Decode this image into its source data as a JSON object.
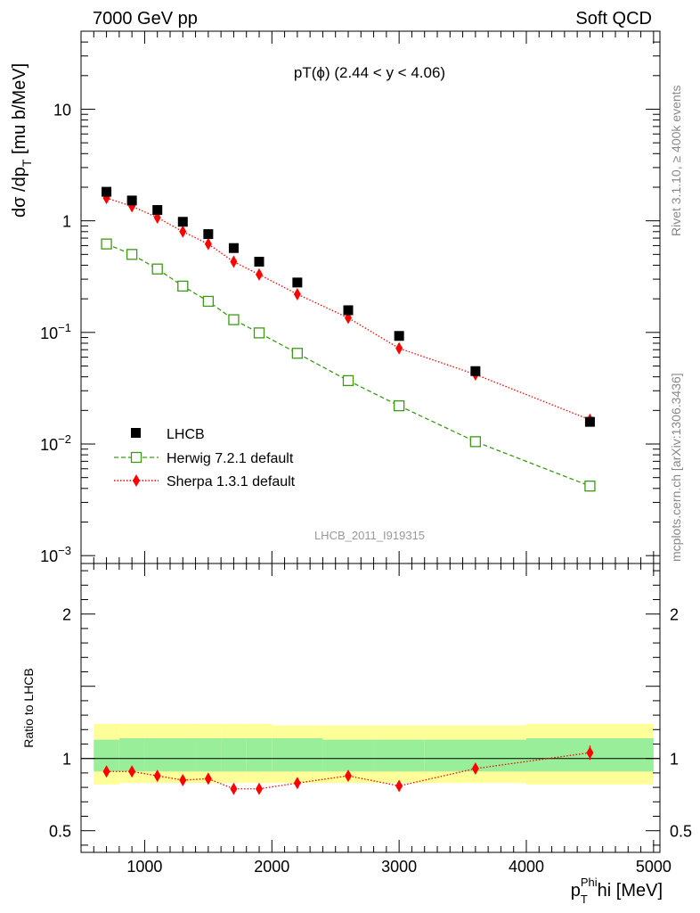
{
  "header": {
    "left": "7000 GeV pp",
    "right": "Soft QCD"
  },
  "side_text": {
    "rivet": "Rivet 3.1.10, ≥ 400k events",
    "mcplots": "mcplots.cern.ch [arXiv:1306.3436]"
  },
  "colors": {
    "data": "#000000",
    "herwig": "#3c9a14",
    "sherpa": "#ff0000",
    "band_inner": "#99ee99",
    "band_outer": "#ffff99"
  },
  "chart_data": [
    {
      "type": "scatter",
      "title": "pT(ϕ) (2.44 < y < 4.06)",
      "ylabel": "dσ /dp_T [mu b/MeV]",
      "ylabel_parts": {
        "main": "dσ /dp",
        "sub": "T",
        "tail": " [mu b/MeV]"
      },
      "yscale": "log",
      "ylim": [
        0.00085,
        50
      ],
      "xlim": [
        500,
        5050
      ],
      "ytick_labels": [
        {
          "value": 0.001,
          "base": "10",
          "exp": "−3"
        },
        {
          "value": 0.01,
          "base": "10",
          "exp": "−2"
        },
        {
          "value": 0.1,
          "base": "10",
          "exp": "−1"
        },
        {
          "value": 1,
          "label": "1"
        },
        {
          "value": 10,
          "label": "10"
        }
      ],
      "legend_position": "lower-left",
      "watermark": "LHCB_2011_I919315",
      "series": [
        {
          "name": "LHCB",
          "style": "data-squares",
          "x": [
            700,
            900,
            1100,
            1300,
            1500,
            1700,
            1900,
            2200,
            2600,
            3000,
            3600,
            4500
          ],
          "values": [
            1.82,
            1.52,
            1.25,
            0.98,
            0.76,
            0.57,
            0.43,
            0.28,
            0.158,
            0.093,
            0.045,
            0.0158
          ]
        },
        {
          "name": "Herwig 7.2.1 default",
          "style": "dashed-open-squares",
          "x": [
            700,
            900,
            1100,
            1300,
            1500,
            1700,
            1900,
            2200,
            2600,
            3000,
            3600,
            4500
          ],
          "values": [
            0.62,
            0.5,
            0.37,
            0.26,
            0.19,
            0.13,
            0.099,
            0.065,
            0.037,
            0.022,
            0.0105,
            0.0042
          ]
        },
        {
          "name": "Sherpa 1.3.1 default",
          "style": "dotted-diamonds",
          "x": [
            700,
            900,
            1100,
            1300,
            1500,
            1700,
            1900,
            2200,
            2600,
            3000,
            3600,
            4500
          ],
          "values": [
            1.6,
            1.35,
            1.07,
            0.8,
            0.62,
            0.43,
            0.33,
            0.22,
            0.135,
            0.072,
            0.042,
            0.0165
          ]
        }
      ]
    },
    {
      "type": "scatter",
      "ylabel": "Ratio to LHCB",
      "xlabel": "p_T^Phi [MeV]",
      "xlabel_parts": {
        "main": "p",
        "sub": "T",
        "sup": "Phi",
        "tail": "hi [MeV]"
      },
      "xlim": [
        500,
        5050
      ],
      "ylim": [
        0.35,
        2.35
      ],
      "ytick_labels": [
        {
          "value": 0.5,
          "label": "0.5"
        },
        {
          "value": 1,
          "label": "1"
        },
        {
          "value": 2,
          "label": "2"
        }
      ],
      "xtick_labels": [
        {
          "value": 1000,
          "label": "1000"
        },
        {
          "value": 2000,
          "label": "2000"
        },
        {
          "value": 3000,
          "label": "3000"
        },
        {
          "value": 4000,
          "label": "4000"
        },
        {
          "value": 5000,
          "label": "5000"
        }
      ],
      "reference_line": 1,
      "uncertainty_bands": [
        {
          "x_edges": [
            600,
            800
          ],
          "inner": [
            0.91,
            1.13
          ],
          "outer": [
            0.82,
            1.24
          ]
        },
        {
          "x_edges": [
            800,
            1000
          ],
          "inner": [
            0.91,
            1.14
          ],
          "outer": [
            0.83,
            1.24
          ]
        },
        {
          "x_edges": [
            1000,
            1200
          ],
          "inner": [
            0.91,
            1.14
          ],
          "outer": [
            0.83,
            1.24
          ]
        },
        {
          "x_edges": [
            1200,
            1400
          ],
          "inner": [
            0.91,
            1.14
          ],
          "outer": [
            0.83,
            1.24
          ]
        },
        {
          "x_edges": [
            1400,
            1600
          ],
          "inner": [
            0.91,
            1.14
          ],
          "outer": [
            0.83,
            1.24
          ]
        },
        {
          "x_edges": [
            1600,
            1800
          ],
          "inner": [
            0.91,
            1.14
          ],
          "outer": [
            0.83,
            1.24
          ]
        },
        {
          "x_edges": [
            1800,
            2000
          ],
          "inner": [
            0.91,
            1.14
          ],
          "outer": [
            0.83,
            1.24
          ]
        },
        {
          "x_edges": [
            2000,
            2400
          ],
          "inner": [
            0.91,
            1.14
          ],
          "outer": [
            0.83,
            1.23
          ]
        },
        {
          "x_edges": [
            2400,
            2800
          ],
          "inner": [
            0.91,
            1.13
          ],
          "outer": [
            0.83,
            1.23
          ]
        },
        {
          "x_edges": [
            2800,
            3200
          ],
          "inner": [
            0.91,
            1.13
          ],
          "outer": [
            0.83,
            1.23
          ]
        },
        {
          "x_edges": [
            3200,
            4000
          ],
          "inner": [
            0.91,
            1.13
          ],
          "outer": [
            0.83,
            1.23
          ]
        },
        {
          "x_edges": [
            4000,
            5000
          ],
          "inner": [
            0.91,
            1.14
          ],
          "outer": [
            0.82,
            1.24
          ]
        }
      ],
      "series": [
        {
          "name": "Sherpa 1.3.1 default",
          "style": "dotted-diamonds",
          "x": [
            700,
            900,
            1100,
            1300,
            1500,
            1700,
            1900,
            2200,
            2600,
            3000,
            3600,
            4500
          ],
          "values": [
            0.91,
            0.91,
            0.88,
            0.85,
            0.86,
            0.79,
            0.79,
            0.83,
            0.88,
            0.81,
            0.93,
            1.04
          ],
          "errors": [
            0.01,
            0.01,
            0.01,
            0.01,
            0.01,
            0.015,
            0.015,
            0.015,
            0.02,
            0.025,
            0.03,
            0.05
          ]
        }
      ]
    }
  ]
}
